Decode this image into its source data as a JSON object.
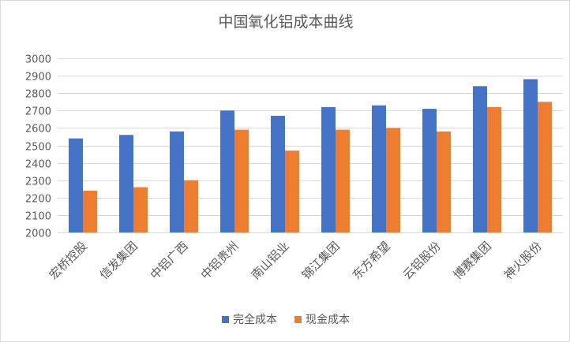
{
  "chart_data": {
    "type": "bar",
    "title": "中国氧化铝成本曲线",
    "xlabel": "",
    "ylabel": "",
    "categories": [
      "宏桥控股",
      "信发集团",
      "中铝广西",
      "中铝贵州",
      "南山铝业",
      "锦江集团",
      "东方希望",
      "云铝股份",
      "博赛集团",
      "神火股份"
    ],
    "series": [
      {
        "name": "完全成本",
        "color": "#4472C4",
        "values": [
          2540,
          2560,
          2580,
          2700,
          2670,
          2720,
          2730,
          2710,
          2840,
          2880
        ]
      },
      {
        "name": "现金成本",
        "color": "#ED7D31",
        "values": [
          2240,
          2260,
          2300,
          2590,
          2470,
          2590,
          2600,
          2580,
          2720,
          2750
        ]
      }
    ],
    "ylim": [
      2000,
      3000
    ],
    "yticks": [
      2000,
      2100,
      2200,
      2300,
      2400,
      2500,
      2600,
      2700,
      2800,
      2900,
      3000
    ],
    "grid": true,
    "legend_position": "bottom"
  }
}
